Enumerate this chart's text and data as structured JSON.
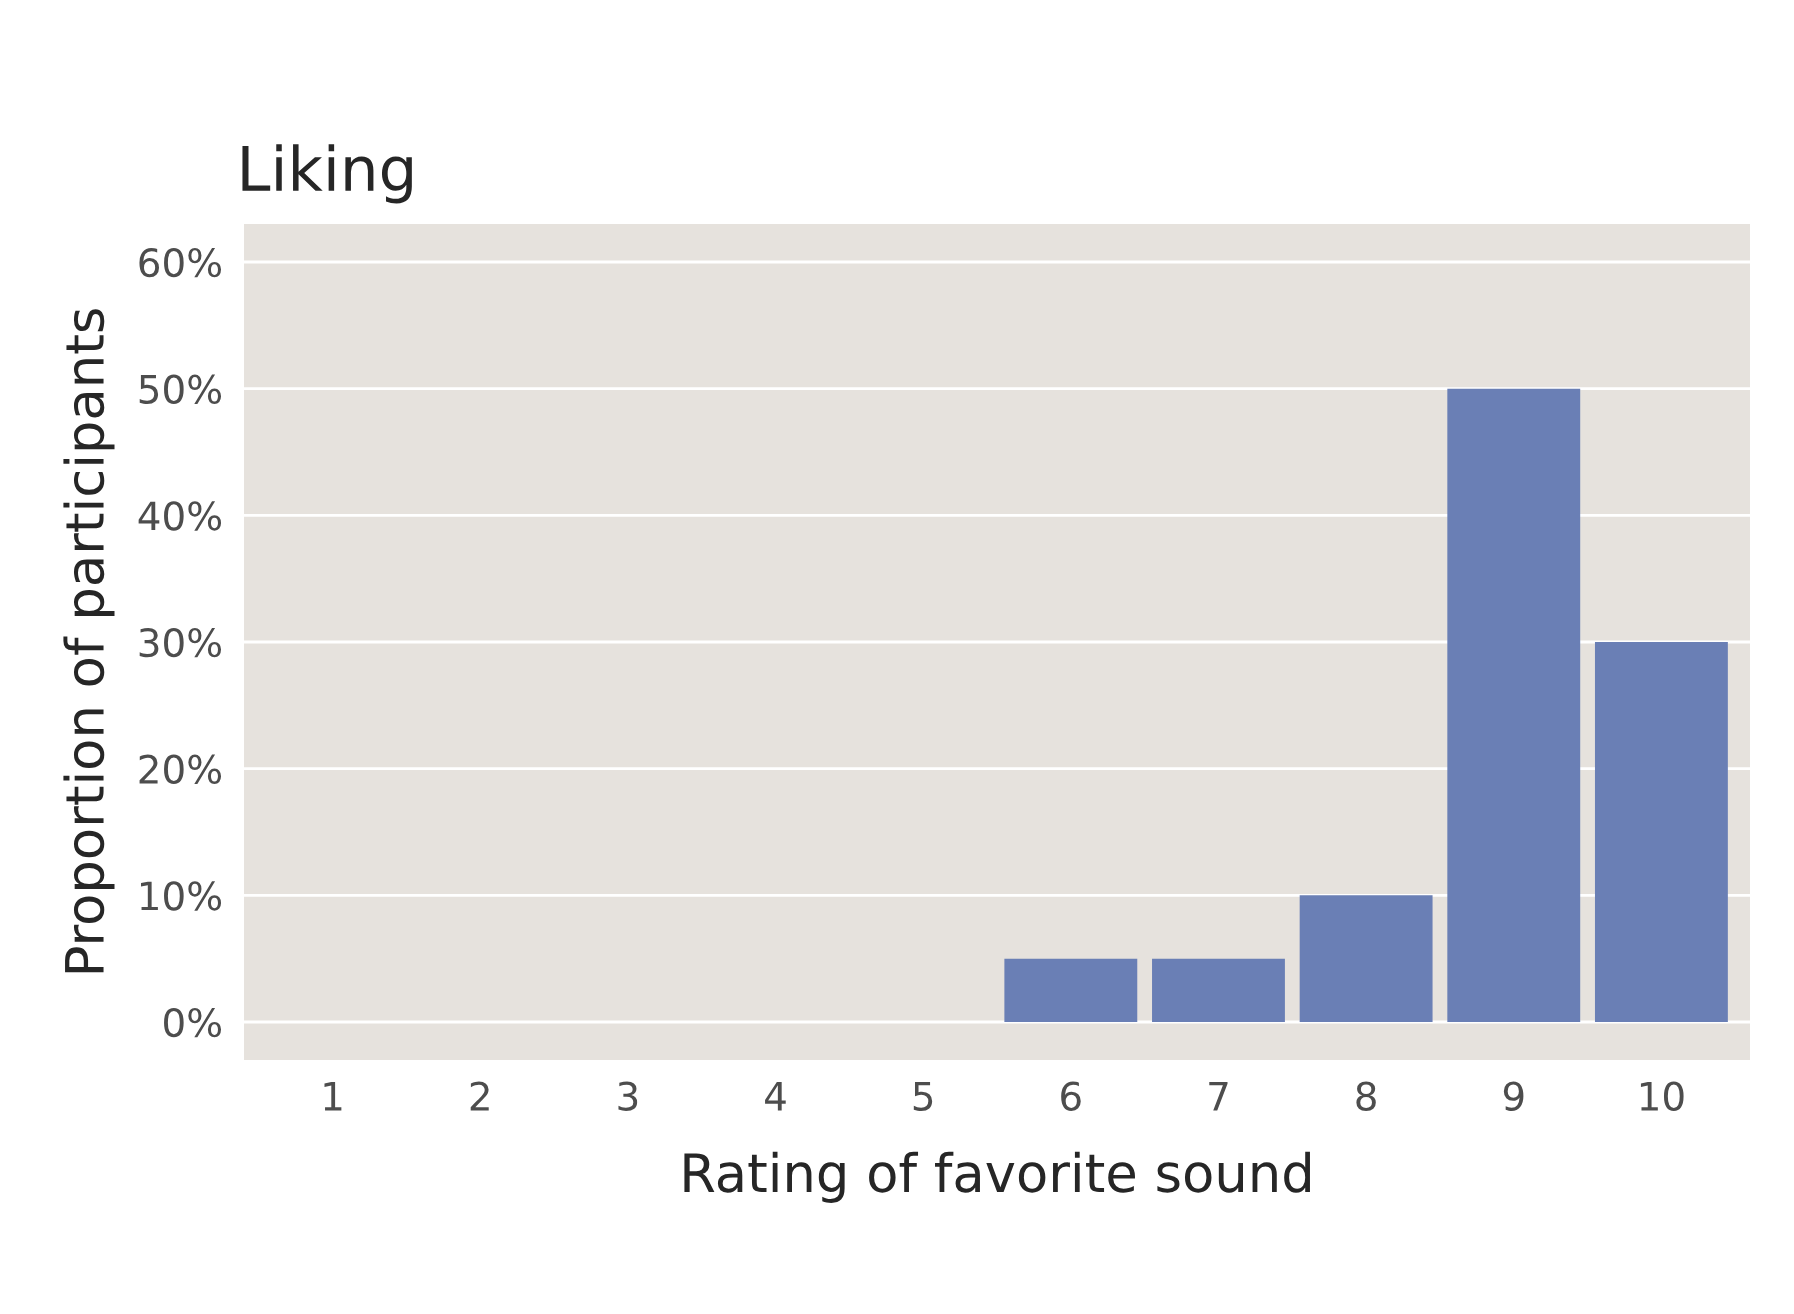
{
  "chart_data": {
    "type": "bar",
    "title": "Liking",
    "xlabel": "Rating of favorite sound",
    "ylabel": "Proportion of participants",
    "categories": [
      "1",
      "2",
      "3",
      "4",
      "5",
      "6",
      "7",
      "8",
      "9",
      "10"
    ],
    "values": [
      0,
      0,
      0,
      0,
      0,
      5,
      5,
      10,
      50,
      30
    ],
    "color": "#6a7fb5",
    "ylim": [
      -3,
      63
    ],
    "yticks": [
      {
        "value": 0,
        "label": "0%"
      },
      {
        "value": 10,
        "label": "10%"
      },
      {
        "value": 20,
        "label": "20%"
      },
      {
        "value": 30,
        "label": "30%"
      },
      {
        "value": 40,
        "label": "40%"
      },
      {
        "value": 50,
        "label": "50%"
      },
      {
        "value": 60,
        "label": "60%"
      }
    ],
    "grid": "y"
  }
}
